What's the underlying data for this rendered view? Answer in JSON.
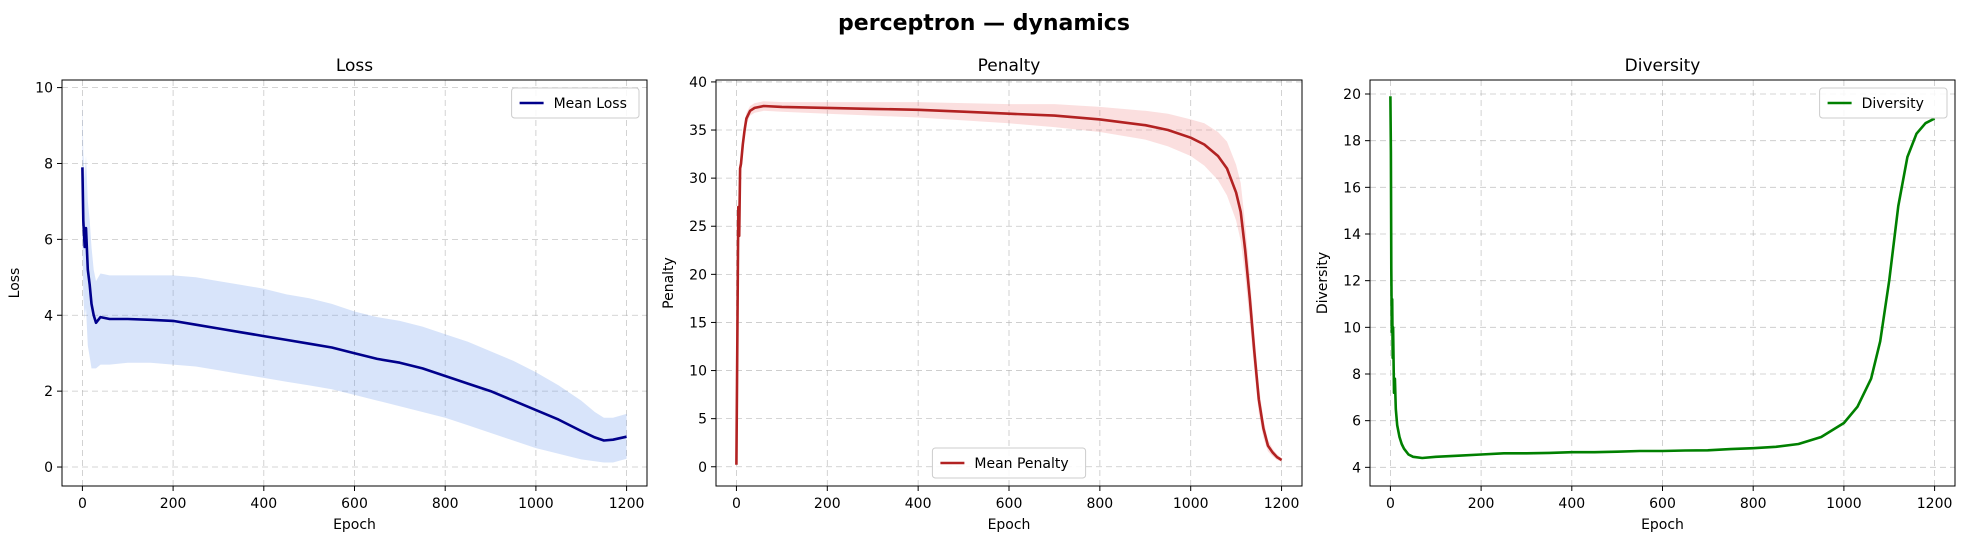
{
  "suptitle": "perceptron — dynamics",
  "chart_data": [
    {
      "type": "line",
      "title": "Loss",
      "xlabel": "Epoch",
      "ylabel": "Loss",
      "xlim": [
        -45,
        1245
      ],
      "ylim": [
        -0.5,
        10.2
      ],
      "xticks": [
        0,
        200,
        400,
        600,
        800,
        1000,
        1200
      ],
      "yticks": [
        0,
        2,
        4,
        6,
        8,
        10
      ],
      "grid": true,
      "legend": {
        "placement": "upper right",
        "entries": [
          "Mean Loss"
        ]
      },
      "series": [
        {
          "name": "Mean Loss",
          "color": "#00008b",
          "band_color": "#6495ed",
          "x": [
            0,
            2,
            5,
            8,
            12,
            16,
            20,
            25,
            30,
            40,
            60,
            100,
            150,
            200,
            250,
            300,
            350,
            400,
            450,
            500,
            550,
            600,
            650,
            700,
            750,
            800,
            850,
            900,
            950,
            1000,
            1050,
            1100,
            1130,
            1150,
            1170,
            1200
          ],
          "y": [
            7.9,
            6.5,
            5.8,
            6.3,
            5.2,
            4.8,
            4.3,
            4.0,
            3.8,
            3.95,
            3.9,
            3.9,
            3.88,
            3.85,
            3.75,
            3.65,
            3.55,
            3.45,
            3.35,
            3.25,
            3.15,
            3.0,
            2.85,
            2.75,
            2.6,
            2.4,
            2.2,
            2.0,
            1.75,
            1.5,
            1.25,
            0.95,
            0.78,
            0.7,
            0.72,
            0.8
          ],
          "band_low": [
            6.0,
            4.5,
            3.9,
            4.2,
            3.2,
            2.9,
            2.6,
            2.6,
            2.6,
            2.7,
            2.7,
            2.75,
            2.75,
            2.7,
            2.65,
            2.55,
            2.45,
            2.35,
            2.25,
            2.15,
            2.05,
            1.9,
            1.75,
            1.6,
            1.45,
            1.3,
            1.1,
            0.9,
            0.7,
            0.5,
            0.35,
            0.2,
            0.15,
            0.12,
            0.12,
            0.22
          ],
          "band_high": [
            9.8,
            8.3,
            7.6,
            8.2,
            7.0,
            6.5,
            5.8,
            5.2,
            4.9,
            5.1,
            5.05,
            5.05,
            5.05,
            5.05,
            5.0,
            4.9,
            4.8,
            4.7,
            4.55,
            4.45,
            4.3,
            4.1,
            3.95,
            3.85,
            3.7,
            3.5,
            3.3,
            3.05,
            2.8,
            2.5,
            2.15,
            1.75,
            1.45,
            1.3,
            1.3,
            1.4
          ]
        }
      ]
    },
    {
      "type": "line",
      "title": "Penalty",
      "xlabel": "Epoch",
      "ylabel": "Penalty",
      "xlim": [
        -45,
        1245
      ],
      "ylim": [
        -2,
        40.2
      ],
      "xticks": [
        0,
        200,
        400,
        600,
        800,
        1000,
        1200
      ],
      "yticks": [
        0,
        5,
        10,
        15,
        20,
        25,
        30,
        35,
        40
      ],
      "grid": true,
      "legend": {
        "placement": "lower center",
        "entries": [
          "Mean Penalty"
        ]
      },
      "series": [
        {
          "name": "Mean Penalty",
          "color": "#b22222",
          "band_color": "#f08080",
          "x": [
            0,
            2,
            4,
            6,
            8,
            10,
            14,
            18,
            22,
            30,
            40,
            60,
            100,
            200,
            300,
            400,
            500,
            600,
            700,
            800,
            900,
            950,
            1000,
            1030,
            1060,
            1080,
            1100,
            1110,
            1120,
            1130,
            1140,
            1150,
            1160,
            1170,
            1180,
            1190,
            1200
          ],
          "y": [
            0.2,
            14,
            27,
            24,
            31,
            31.5,
            33.5,
            35,
            36.2,
            37,
            37.3,
            37.5,
            37.4,
            37.3,
            37.2,
            37.1,
            36.9,
            36.7,
            36.5,
            36.1,
            35.5,
            35.0,
            34.2,
            33.5,
            32.3,
            31.0,
            28.5,
            26.5,
            22.5,
            17.5,
            12.0,
            7.0,
            4.0,
            2.2,
            1.5,
            1.0,
            0.7
          ],
          "band_low": [
            0.2,
            13,
            26,
            23,
            30,
            30.5,
            32.8,
            34.4,
            35.6,
            36.5,
            36.8,
            37.0,
            36.9,
            36.7,
            36.5,
            36.3,
            36.0,
            35.7,
            35.3,
            34.8,
            34.0,
            33.3,
            32.3,
            31.3,
            29.8,
            28.2,
            25.6,
            23.5,
            19.8,
            15.0,
            10.0,
            5.5,
            3.0,
            1.6,
            1.1,
            0.7,
            0.5
          ],
          "band_high": [
            0.2,
            15,
            28,
            25,
            32,
            32.5,
            34.2,
            35.6,
            36.8,
            37.5,
            37.8,
            38.0,
            37.9,
            37.9,
            37.9,
            37.9,
            37.8,
            37.7,
            37.7,
            37.4,
            37.0,
            36.7,
            36.1,
            35.7,
            34.8,
            33.8,
            31.4,
            29.5,
            25.2,
            20.0,
            14.0,
            8.5,
            5.0,
            2.8,
            1.9,
            1.3,
            0.9
          ]
        }
      ]
    },
    {
      "type": "line",
      "title": "Diversity",
      "xlabel": "Epoch",
      "ylabel": "Diversity",
      "xlim": [
        -45,
        1245
      ],
      "ylim": [
        3.2,
        20.6
      ],
      "xticks": [
        0,
        200,
        400,
        600,
        800,
        1000,
        1200
      ],
      "yticks": [
        4,
        6,
        8,
        10,
        12,
        14,
        16,
        18,
        20
      ],
      "grid": true,
      "legend": {
        "placement": "upper right",
        "entries": [
          "Diversity"
        ]
      },
      "series": [
        {
          "name": "Diversity",
          "color": "#008000",
          "x": [
            0,
            1,
            2,
            3,
            4,
            5,
            6,
            8,
            10,
            12,
            15,
            20,
            25,
            30,
            40,
            50,
            70,
            100,
            150,
            200,
            250,
            300,
            350,
            400,
            450,
            500,
            550,
            600,
            650,
            700,
            750,
            800,
            850,
            900,
            950,
            1000,
            1030,
            1060,
            1080,
            1100,
            1120,
            1140,
            1160,
            1180,
            1200
          ],
          "y": [
            19.9,
            17.5,
            12.5,
            9.8,
            11.2,
            8.7,
            10.0,
            7.2,
            7.8,
            6.5,
            5.8,
            5.3,
            5.0,
            4.8,
            4.55,
            4.45,
            4.4,
            4.45,
            4.5,
            4.55,
            4.6,
            4.6,
            4.62,
            4.65,
            4.65,
            4.67,
            4.7,
            4.7,
            4.72,
            4.73,
            4.78,
            4.82,
            4.88,
            5.0,
            5.3,
            5.9,
            6.6,
            7.8,
            9.4,
            12.0,
            15.2,
            17.3,
            18.3,
            18.75,
            18.95
          ]
        }
      ]
    }
  ]
}
